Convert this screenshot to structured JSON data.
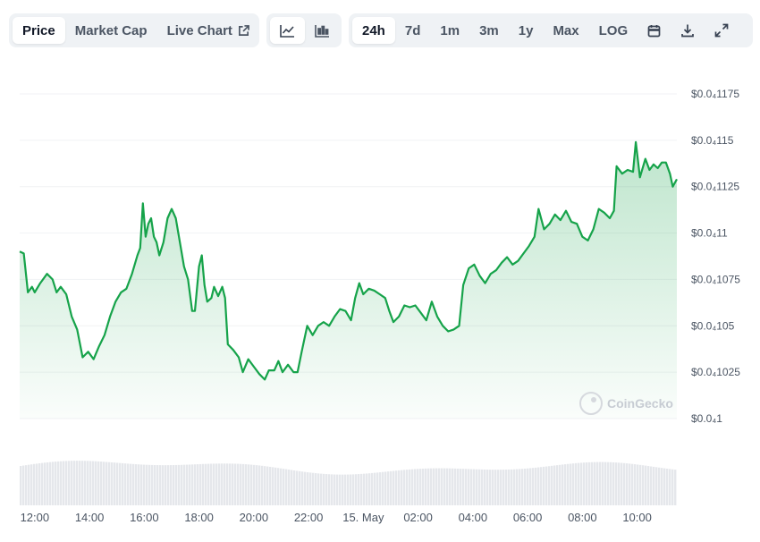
{
  "toolbar": {
    "tabs": [
      {
        "label": "Price",
        "active": true
      },
      {
        "label": "Market Cap",
        "active": false
      },
      {
        "label": "Live Chart",
        "active": false
      }
    ],
    "chart_type_icons": [
      "line-chart-icon",
      "candlestick-icon"
    ],
    "ranges": [
      {
        "label": "24h",
        "active": true
      },
      {
        "label": "7d",
        "active": false
      },
      {
        "label": "1m",
        "active": false
      },
      {
        "label": "3m",
        "active": false
      },
      {
        "label": "1y",
        "active": false
      },
      {
        "label": "Max",
        "active": false
      },
      {
        "label": "LOG",
        "active": false
      }
    ],
    "tool_icons": [
      "calendar-icon",
      "download-icon",
      "fullscreen-icon"
    ]
  },
  "watermark": "CoinGecko",
  "colors": {
    "line": "#16a34a",
    "area_top": "#16a34a",
    "volume": "#e5e7eb",
    "grid": "#f1f2f4"
  },
  "chart_data": {
    "type": "area",
    "title": "",
    "xlabel": "",
    "ylabel": "",
    "grid": true,
    "y_ticks": [
      {
        "value": 0.01,
        "label": "$0.0₄1"
      },
      {
        "value": 0.01025,
        "label": "$0.0₄1025"
      },
      {
        "value": 0.0105,
        "label": "$0.0₄105"
      },
      {
        "value": 0.01075,
        "label": "$0.0₄1075"
      },
      {
        "value": 0.011,
        "label": "$0.0₄11"
      },
      {
        "value": 0.01125,
        "label": "$0.0₄1125"
      },
      {
        "value": 0.0115,
        "label": "$0.0₄115"
      },
      {
        "value": 0.01175,
        "label": "$0.0₄1175"
      }
    ],
    "ylim": [
      0.01,
      0.01175
    ],
    "x_ticks": [
      {
        "label": "12:00",
        "hour": 0
      },
      {
        "label": "14:00",
        "hour": 2
      },
      {
        "label": "16:00",
        "hour": 4
      },
      {
        "label": "18:00",
        "hour": 6
      },
      {
        "label": "20:00",
        "hour": 8
      },
      {
        "label": "22:00",
        "hour": 10
      },
      {
        "label": "15. May",
        "hour": 12
      },
      {
        "label": "02:00",
        "hour": 14
      },
      {
        "label": "04:00",
        "hour": 16
      },
      {
        "label": "06:00",
        "hour": 18
      },
      {
        "label": "08:00",
        "hour": 20
      },
      {
        "label": "10:00",
        "hour": 22
      }
    ],
    "xlim": [
      -0.55,
      23.45
    ],
    "series": [
      {
        "values": [
          [
            -0.55,
            0.0109
          ],
          [
            -0.4,
            0.01089
          ],
          [
            -0.25,
            0.01068
          ],
          [
            -0.1,
            0.01071
          ],
          [
            0,
            0.01068
          ],
          [
            0.2,
            0.01073
          ],
          [
            0.45,
            0.01078
          ],
          [
            0.65,
            0.01075
          ],
          [
            0.8,
            0.01068
          ],
          [
            0.95,
            0.01071
          ],
          [
            1.15,
            0.01067
          ],
          [
            1.35,
            0.01055
          ],
          [
            1.55,
            0.01048
          ],
          [
            1.75,
            0.01033
          ],
          [
            1.95,
            0.01036
          ],
          [
            2.15,
            0.01032
          ],
          [
            2.35,
            0.01039
          ],
          [
            2.55,
            0.01045
          ],
          [
            2.75,
            0.01055
          ],
          [
            2.95,
            0.01063
          ],
          [
            3.15,
            0.01068
          ],
          [
            3.35,
            0.0107
          ],
          [
            3.55,
            0.01078
          ],
          [
            3.75,
            0.01088
          ],
          [
            3.85,
            0.01092
          ],
          [
            3.95,
            0.01116
          ],
          [
            4.05,
            0.01098
          ],
          [
            4.15,
            0.01105
          ],
          [
            4.25,
            0.01108
          ],
          [
            4.35,
            0.01098
          ],
          [
            4.45,
            0.01095
          ],
          [
            4.55,
            0.01088
          ],
          [
            4.7,
            0.01095
          ],
          [
            4.85,
            0.01108
          ],
          [
            5.0,
            0.01113
          ],
          [
            5.15,
            0.01108
          ],
          [
            5.3,
            0.01095
          ],
          [
            5.45,
            0.01082
          ],
          [
            5.6,
            0.01075
          ],
          [
            5.75,
            0.01058
          ],
          [
            5.85,
            0.01058
          ],
          [
            6.0,
            0.01082
          ],
          [
            6.1,
            0.01088
          ],
          [
            6.2,
            0.01072
          ],
          [
            6.3,
            0.01063
          ],
          [
            6.45,
            0.01065
          ],
          [
            6.55,
            0.01071
          ],
          [
            6.7,
            0.01066
          ],
          [
            6.85,
            0.01071
          ],
          [
            6.95,
            0.01065
          ],
          [
            7.05,
            0.0104
          ],
          [
            7.25,
            0.01037
          ],
          [
            7.45,
            0.01033
          ],
          [
            7.6,
            0.01025
          ],
          [
            7.8,
            0.01032
          ],
          [
            8.0,
            0.01028
          ],
          [
            8.2,
            0.01024
          ],
          [
            8.4,
            0.01021
          ],
          [
            8.55,
            0.01026
          ],
          [
            8.75,
            0.01026
          ],
          [
            8.9,
            0.01031
          ],
          [
            9.05,
            0.01025
          ],
          [
            9.25,
            0.01029
          ],
          [
            9.45,
            0.01025
          ],
          [
            9.6,
            0.01025
          ],
          [
            9.75,
            0.01036
          ],
          [
            9.95,
            0.0105
          ],
          [
            10.15,
            0.01045
          ],
          [
            10.35,
            0.0105
          ],
          [
            10.55,
            0.01052
          ],
          [
            10.75,
            0.0105
          ],
          [
            10.95,
            0.01055
          ],
          [
            11.15,
            0.01059
          ],
          [
            11.35,
            0.01058
          ],
          [
            11.55,
            0.01053
          ],
          [
            11.7,
            0.01065
          ],
          [
            11.85,
            0.01073
          ],
          [
            12.0,
            0.01067
          ],
          [
            12.2,
            0.0107
          ],
          [
            12.4,
            0.01069
          ],
          [
            12.6,
            0.01067
          ],
          [
            12.8,
            0.01065
          ],
          [
            12.95,
            0.01058
          ],
          [
            13.1,
            0.01052
          ],
          [
            13.3,
            0.01055
          ],
          [
            13.5,
            0.01061
          ],
          [
            13.7,
            0.0106
          ],
          [
            13.9,
            0.01061
          ],
          [
            14.1,
            0.01057
          ],
          [
            14.3,
            0.01053
          ],
          [
            14.5,
            0.01063
          ],
          [
            14.7,
            0.01055
          ],
          [
            14.9,
            0.0105
          ],
          [
            15.1,
            0.01047
          ],
          [
            15.3,
            0.01048
          ],
          [
            15.5,
            0.0105
          ],
          [
            15.65,
            0.01072
          ],
          [
            15.85,
            0.01081
          ],
          [
            16.05,
            0.01083
          ],
          [
            16.25,
            0.01077
          ],
          [
            16.45,
            0.01073
          ],
          [
            16.65,
            0.01078
          ],
          [
            16.85,
            0.0108
          ],
          [
            17.05,
            0.01084
          ],
          [
            17.25,
            0.01087
          ],
          [
            17.45,
            0.01083
          ],
          [
            17.65,
            0.01085
          ],
          [
            17.85,
            0.01089
          ],
          [
            18.05,
            0.01093
          ],
          [
            18.25,
            0.01098
          ],
          [
            18.4,
            0.01113
          ],
          [
            18.6,
            0.01102
          ],
          [
            18.8,
            0.01105
          ],
          [
            19.0,
            0.0111
          ],
          [
            19.2,
            0.01107
          ],
          [
            19.4,
            0.01112
          ],
          [
            19.6,
            0.01106
          ],
          [
            19.8,
            0.01105
          ],
          [
            20.0,
            0.01098
          ],
          [
            20.2,
            0.01096
          ],
          [
            20.4,
            0.01102
          ],
          [
            20.6,
            0.01113
          ],
          [
            20.8,
            0.01111
          ],
          [
            21.0,
            0.01108
          ],
          [
            21.15,
            0.01112
          ],
          [
            21.25,
            0.01136
          ],
          [
            21.45,
            0.01132
          ],
          [
            21.65,
            0.01134
          ],
          [
            21.85,
            0.01133
          ],
          [
            21.95,
            0.01149
          ],
          [
            22.1,
            0.0113
          ],
          [
            22.3,
            0.0114
          ],
          [
            22.45,
            0.01134
          ],
          [
            22.6,
            0.01137
          ],
          [
            22.75,
            0.01135
          ],
          [
            22.9,
            0.01138
          ],
          [
            23.05,
            0.01138
          ],
          [
            23.2,
            0.01132
          ],
          [
            23.3,
            0.01125
          ],
          [
            23.45,
            0.01129
          ]
        ]
      }
    ]
  }
}
